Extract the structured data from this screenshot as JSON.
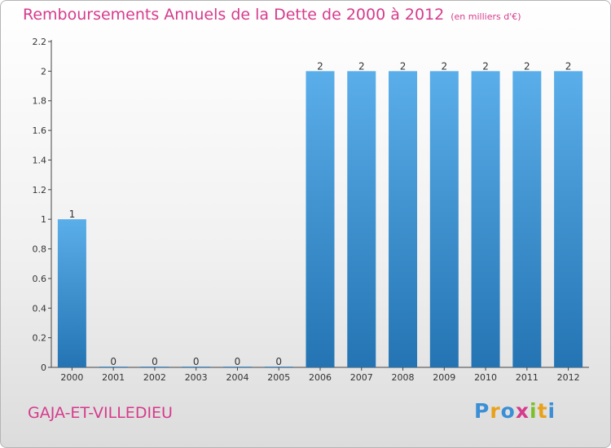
{
  "header": {
    "title": "Remboursements Annuels de la Dette de 2000 à 2012",
    "unit": "(en milliers d'€)"
  },
  "footer": {
    "place": "GAJA-ET-VILLEDIEU",
    "brand": "Proxiti"
  },
  "colors": {
    "title": "#d63b8c",
    "bar_top": "#5aaee9",
    "bar_bottom": "#2474b3",
    "logo": [
      "#3b8fd6",
      "#e8a21a",
      "#3b8fd6",
      "#d63b8c",
      "#7cbf2a",
      "#e8a21a",
      "#3b8fd6"
    ]
  },
  "chart_data": {
    "type": "bar",
    "categories": [
      "2000",
      "2001",
      "2002",
      "2003",
      "2004",
      "2005",
      "2006",
      "2007",
      "2008",
      "2009",
      "2010",
      "2011",
      "2012"
    ],
    "values": [
      1,
      0,
      0,
      0,
      0,
      0,
      2,
      2,
      2,
      2,
      2,
      2,
      2
    ],
    "data_labels": [
      "1",
      "0",
      "0",
      "0",
      "0",
      "0",
      "2",
      "2",
      "2",
      "2",
      "2",
      "2",
      "2"
    ],
    "yticks": [
      "0",
      "0.2",
      "0.4",
      "0.6",
      "0.8",
      "1",
      "1.2",
      "1.4",
      "1.6",
      "1.8",
      "2",
      "2.2"
    ],
    "ylim": [
      0,
      2.2
    ],
    "grid": false,
    "legend": "none"
  }
}
